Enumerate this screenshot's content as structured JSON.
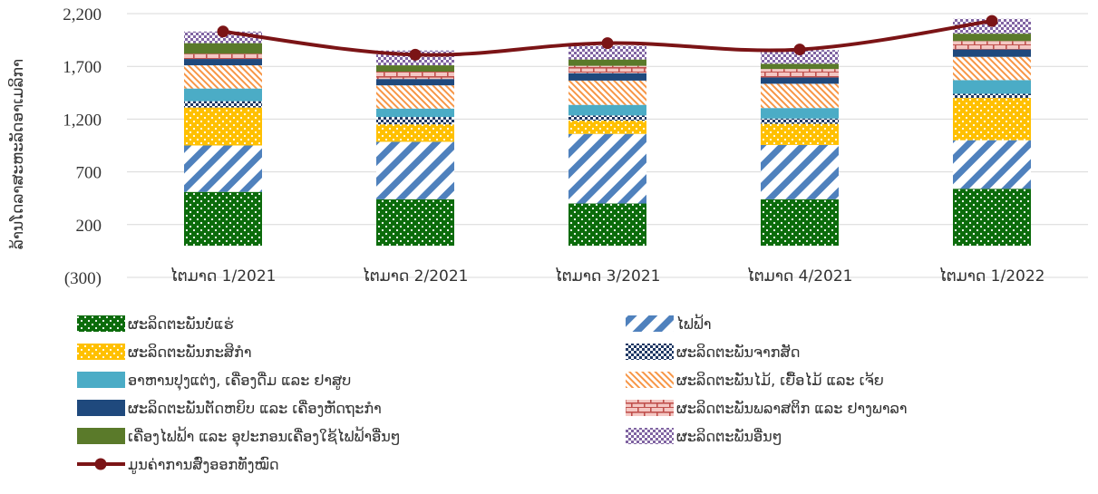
{
  "chart_data": {
    "type": "bar",
    "stacked": true,
    "title": "",
    "xlabel": "",
    "ylabel": "ລ້ານໂດລາສະຫະລັດອາເມລິກາ",
    "ylim": [
      -300,
      2200
    ],
    "yticks": [
      "(300)",
      "200",
      "700",
      "1,200",
      "1,700",
      "2,200"
    ],
    "ytick_values": [
      -300,
      200,
      700,
      1200,
      1700,
      2200
    ],
    "grid": true,
    "legend_position": "bottom",
    "categories": [
      "ໄຕມາດ 1/2021",
      "ໄຕມາດ 2/2021",
      "ໄຕມາດ 3/2021",
      "ໄຕມາດ 4/2021",
      "ໄຕມາດ 1/2022"
    ],
    "series": [
      {
        "name": "ຜະລິດຕະພັນບໍ່ແຮ່",
        "values": [
          510,
          440,
          400,
          440,
          540
        ],
        "color": "#0b6b0b",
        "pattern": "dots"
      },
      {
        "name": "ໄຟຟ້າ",
        "values": [
          440,
          545,
          660,
          515,
          460
        ],
        "color": "#4f81bd",
        "pattern": "wide-diagonal"
      },
      {
        "name": "ຜະລິດຕະພັນກະສິກຳ",
        "values": [
          360,
          165,
          125,
          200,
          400
        ],
        "color": "#ffc000",
        "pattern": "dots"
      },
      {
        "name": "ຜະລິດຕະພັນຈາກສັດ",
        "values": [
          60,
          70,
          50,
          50,
          40
        ],
        "color": "#1f3864",
        "pattern": "checker"
      },
      {
        "name": "ອາຫານປຸງແຕ່ງ, ເຄື່ອງດື່ມ ແລະ ຢາສູບ",
        "values": [
          120,
          80,
          100,
          100,
          130
        ],
        "color": "#4bacc6",
        "pattern": "solid"
      },
      {
        "name": "ຜະລິດຕະພັນໄມ້, ເຍື້ອໄມ້ ແລະ ເຈ້ຍ",
        "values": [
          220,
          220,
          230,
          230,
          220
        ],
        "color": "#f79646",
        "pattern": "diagonal"
      },
      {
        "name": "ຜະລິດຕະພັນຕັດຫຍິບ ແລະ ເຄື່ອງຫັດຖະກຳ",
        "values": [
          60,
          60,
          70,
          60,
          70
        ],
        "color": "#1f497d",
        "pattern": "solid"
      },
      {
        "name": "ຜະລິດຕະພັນພລາສຕິກ ແລະ ຢາງພາລາ",
        "values": [
          50,
          70,
          70,
          80,
          80
        ],
        "color": "#c0504d",
        "pattern": "brick"
      },
      {
        "name": "ເຄື່ອງໄຟຟ້າ ແລະ ອຸປະກອນເຄື່ອງໃຊ້ໄຟຟ້າອື່ນໆ",
        "values": [
          100,
          60,
          60,
          50,
          70
        ],
        "color": "#5a7a2a",
        "pattern": "solid"
      },
      {
        "name": "ຜະລິດຕະພັນອື່ນໆ",
        "values": [
          110,
          140,
          130,
          130,
          140
        ],
        "color": "#8064a2",
        "pattern": "checker"
      }
    ],
    "line": {
      "name": "ມູນຄ່າການສົ່ງອອກທັງໝົດ",
      "values": [
        2030,
        1810,
        1920,
        1860,
        2130
      ],
      "color": "#7b1416"
    }
  }
}
